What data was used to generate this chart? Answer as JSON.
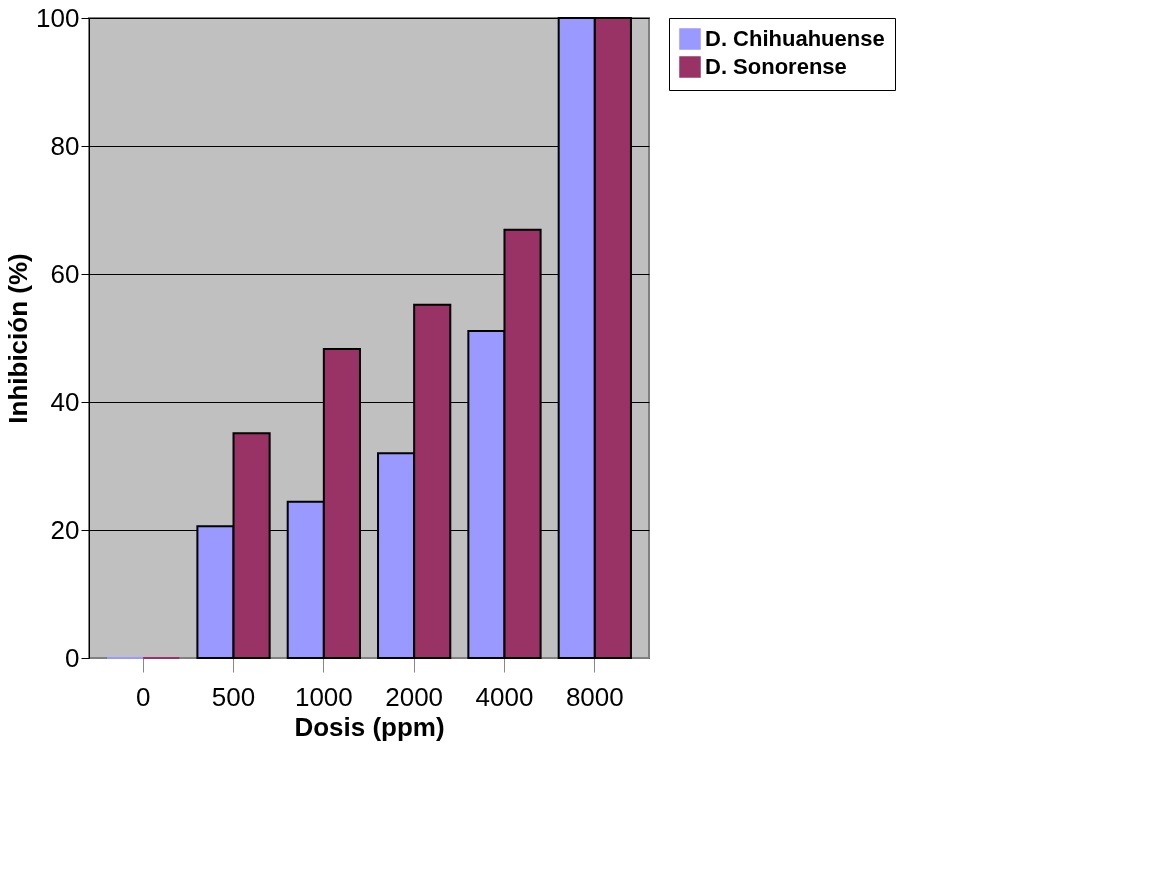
{
  "chart_data": {
    "type": "bar",
    "xlabel": "Dosis (ppm)",
    "ylabel": "Inhibición (%)",
    "categories": [
      "0",
      "500",
      "1000",
      "2000",
      "4000",
      "8000"
    ],
    "series": [
      {
        "name": "D. Chihuahuense",
        "color": "#9999ff",
        "values": [
          0,
          20.6,
          24.4,
          32,
          51.1,
          100
        ]
      },
      {
        "name": "D. Sonorense",
        "color": "#993366",
        "values": [
          0,
          35.1,
          48.3,
          55.2,
          66.9,
          100
        ]
      }
    ],
    "ylim": [
      0,
      100
    ],
    "yticks": [
      0,
      20,
      40,
      60,
      80,
      100
    ],
    "grid": "y",
    "legend": "right"
  }
}
